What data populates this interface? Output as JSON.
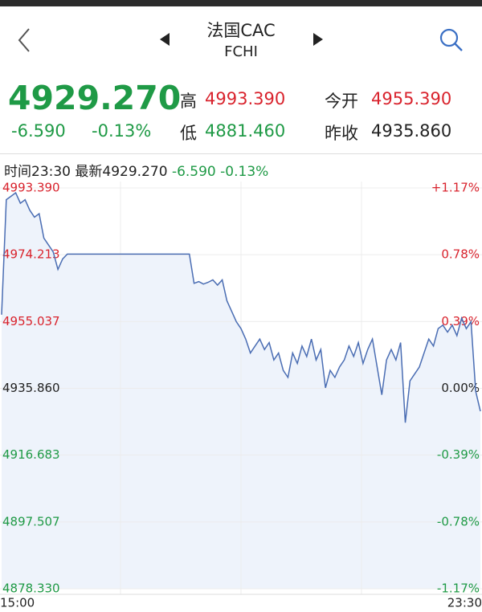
{
  "header": {
    "title": "法国CAC",
    "subtitle": "FCHI"
  },
  "quote": {
    "price": "4929.270",
    "change": "-6.590",
    "change_pct": "-0.13%",
    "high_label": "高",
    "high": "4993.390",
    "open_label": "今开",
    "open": "4955.390",
    "low_label": "低",
    "low": "4881.460",
    "prev_close_label": "昨收",
    "prev_close": "4935.860"
  },
  "info_bar": {
    "time_label": "时间",
    "time": "23:30",
    "latest_label": "最新",
    "latest": "4929.270",
    "change": "-6.590",
    "change_pct": "-0.13%"
  },
  "chart_data": {
    "type": "line",
    "color": "#4a6db3",
    "fill_color": "#eef3fb",
    "up_color": "#d9232d",
    "down_color": "#1f9a46",
    "flat_color": "#222222",
    "categories": [
      "15:00",
      null,
      null,
      null,
      null,
      null,
      null,
      null,
      null,
      null,
      null,
      null,
      null,
      null,
      null,
      null,
      null,
      null,
      null,
      null,
      null,
      null,
      null,
      null,
      null,
      null,
      null,
      null,
      null,
      null,
      null,
      null,
      null,
      null,
      null,
      null,
      null,
      null,
      null,
      null,
      null,
      null,
      null,
      null,
      null,
      null,
      null,
      null,
      null,
      null,
      null,
      null,
      null,
      null,
      null,
      null,
      null,
      null,
      null,
      null,
      null,
      null,
      null,
      null,
      null,
      null,
      null,
      null,
      null,
      null,
      null,
      null,
      null,
      null,
      null,
      null,
      null,
      null,
      null,
      null,
      null,
      null,
      null,
      null,
      null,
      null,
      null,
      null,
      null,
      null,
      null,
      null,
      null,
      null,
      null,
      null,
      null,
      null,
      null,
      null,
      null,
      null,
      "23:30"
    ],
    "values": [
      4957,
      4990,
      4991,
      4992,
      4989,
      4990,
      4987,
      4985,
      4986,
      4979,
      4977,
      4975,
      4970,
      4973,
      4974.4,
      4974.4,
      4974.4,
      4974.4,
      4974.4,
      4974.4,
      4974.4,
      4974.4,
      4974.4,
      4974.4,
      4974.4,
      4974.4,
      4974.4,
      4974.4,
      4974.4,
      4974.4,
      4974.4,
      4974.4,
      4974.4,
      4974.4,
      4974.4,
      4974.4,
      4974.4,
      4974.4,
      4974.4,
      4974.4,
      4974.4,
      4966,
      4966.5,
      4965.8,
      4966.3,
      4967,
      4965.5,
      4967,
      4961,
      4958,
      4955,
      4953,
      4950,
      4946,
      4948,
      4950,
      4947,
      4949,
      4944,
      4946,
      4941,
      4939,
      4946,
      4943,
      4948,
      4945,
      4950,
      4944,
      4947,
      4936,
      4941,
      4939,
      4942,
      4944,
      4948,
      4945,
      4949,
      4943,
      4947,
      4950,
      4942,
      4934,
      4944,
      4947,
      4944,
      4949,
      4926,
      4938,
      4940,
      4942,
      4946,
      4950,
      4948,
      4953,
      4954,
      4952,
      4954,
      4951,
      4956,
      4953,
      4955,
      4935,
      4929.27
    ],
    "ylim": [
      4878.33,
      4993.39
    ],
    "yticks": [
      {
        "value": 4993.39,
        "label": "4993.390"
      },
      {
        "value": 4974.213,
        "label": "4974.213"
      },
      {
        "value": 4955.037,
        "label": "4955.037"
      },
      {
        "value": 4935.86,
        "label": "4935.860"
      },
      {
        "value": 4916.683,
        "label": "4916.683"
      },
      {
        "value": 4897.507,
        "label": "4897.507"
      },
      {
        "value": 4878.33,
        "label": "4878.330"
      }
    ],
    "y2lim": [
      -1.17,
      1.17
    ],
    "y2ticks": [
      {
        "value": 1.17,
        "label": "+1.17%"
      },
      {
        "value": 0.78,
        "label": "0.78%"
      },
      {
        "value": 0.39,
        "label": "0.39%"
      },
      {
        "value": 0,
        "label": "0.00%"
      },
      {
        "value": -0.39,
        "label": "-0.39%"
      },
      {
        "value": -0.78,
        "label": "-0.78%"
      },
      {
        "value": -1.17,
        "label": "-1.17%"
      }
    ],
    "grid": true
  }
}
